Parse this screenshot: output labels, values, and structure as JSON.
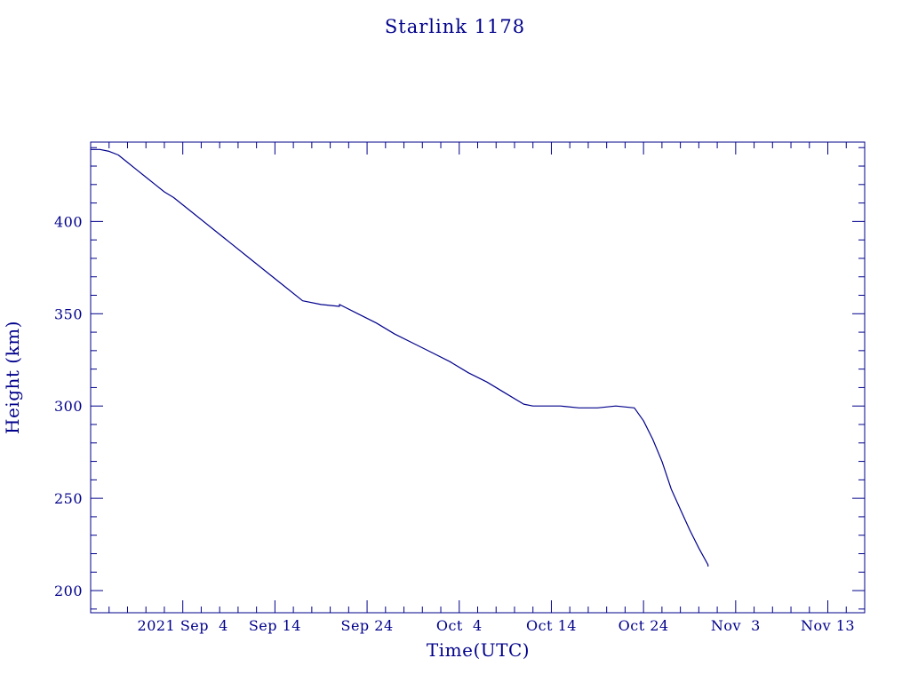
{
  "chart_data": {
    "type": "line",
    "title": "Starlink 1178",
    "xlabel": "Time(UTC)",
    "ylabel": "Height (km)",
    "x_tick_labels": [
      "2021 Sep  4",
      "Sep 14",
      "Sep 24",
      "Oct  4",
      "Oct 14",
      "Oct 24",
      "Nov  3",
      "Nov 13"
    ],
    "x_tick_dates": [
      "2021-09-04",
      "2021-09-14",
      "2021-09-24",
      "2021-10-04",
      "2021-10-14",
      "2021-10-24",
      "2021-11-03",
      "2021-11-13"
    ],
    "xlim": [
      "2021-08-25",
      "2021-11-17"
    ],
    "y_tick_labels": [
      "200",
      "250",
      "300",
      "350",
      "400"
    ],
    "y_ticks": [
      200,
      250,
      300,
      350,
      400
    ],
    "ylim": [
      188,
      443
    ],
    "grid": false,
    "series": [
      {
        "x": [
          "2021-08-25",
          "2021-08-26",
          "2021-08-27",
          "2021-08-28",
          "2021-08-29",
          "2021-08-30",
          "2021-08-31",
          "2021-09-01",
          "2021-09-02",
          "2021-09-03",
          "2021-09-05",
          "2021-09-07",
          "2021-09-09",
          "2021-09-11",
          "2021-09-13",
          "2021-09-15",
          "2021-09-17",
          "2021-09-19",
          "2021-09-19",
          "2021-09-21",
          "2021-09-21",
          "2021-09-23",
          "2021-09-25",
          "2021-09-27",
          "2021-09-29",
          "2021-10-01",
          "2021-10-03",
          "2021-10-05",
          "2021-10-07",
          "2021-10-09",
          "2021-10-11",
          "2021-10-12",
          "2021-10-13",
          "2021-10-15",
          "2021-10-17",
          "2021-10-19",
          "2021-10-21",
          "2021-10-23",
          "2021-10-24",
          "2021-10-25",
          "2021-10-26",
          "2021-10-27",
          "2021-10-28",
          "2021-10-29",
          "2021-10-30",
          "2021-10-31",
          "2021-10-31"
        ],
        "y": [
          439,
          439,
          438,
          436,
          432,
          428,
          424,
          420,
          416,
          413,
          405,
          397,
          389,
          381,
          373,
          365,
          357,
          355,
          355,
          354,
          355,
          350,
          345,
          339,
          334,
          329,
          324,
          318,
          313,
          307,
          301,
          300,
          300,
          300,
          299,
          299,
          300,
          299,
          292,
          282,
          270,
          255,
          244,
          233,
          223,
          214,
          213
        ]
      }
    ]
  }
}
